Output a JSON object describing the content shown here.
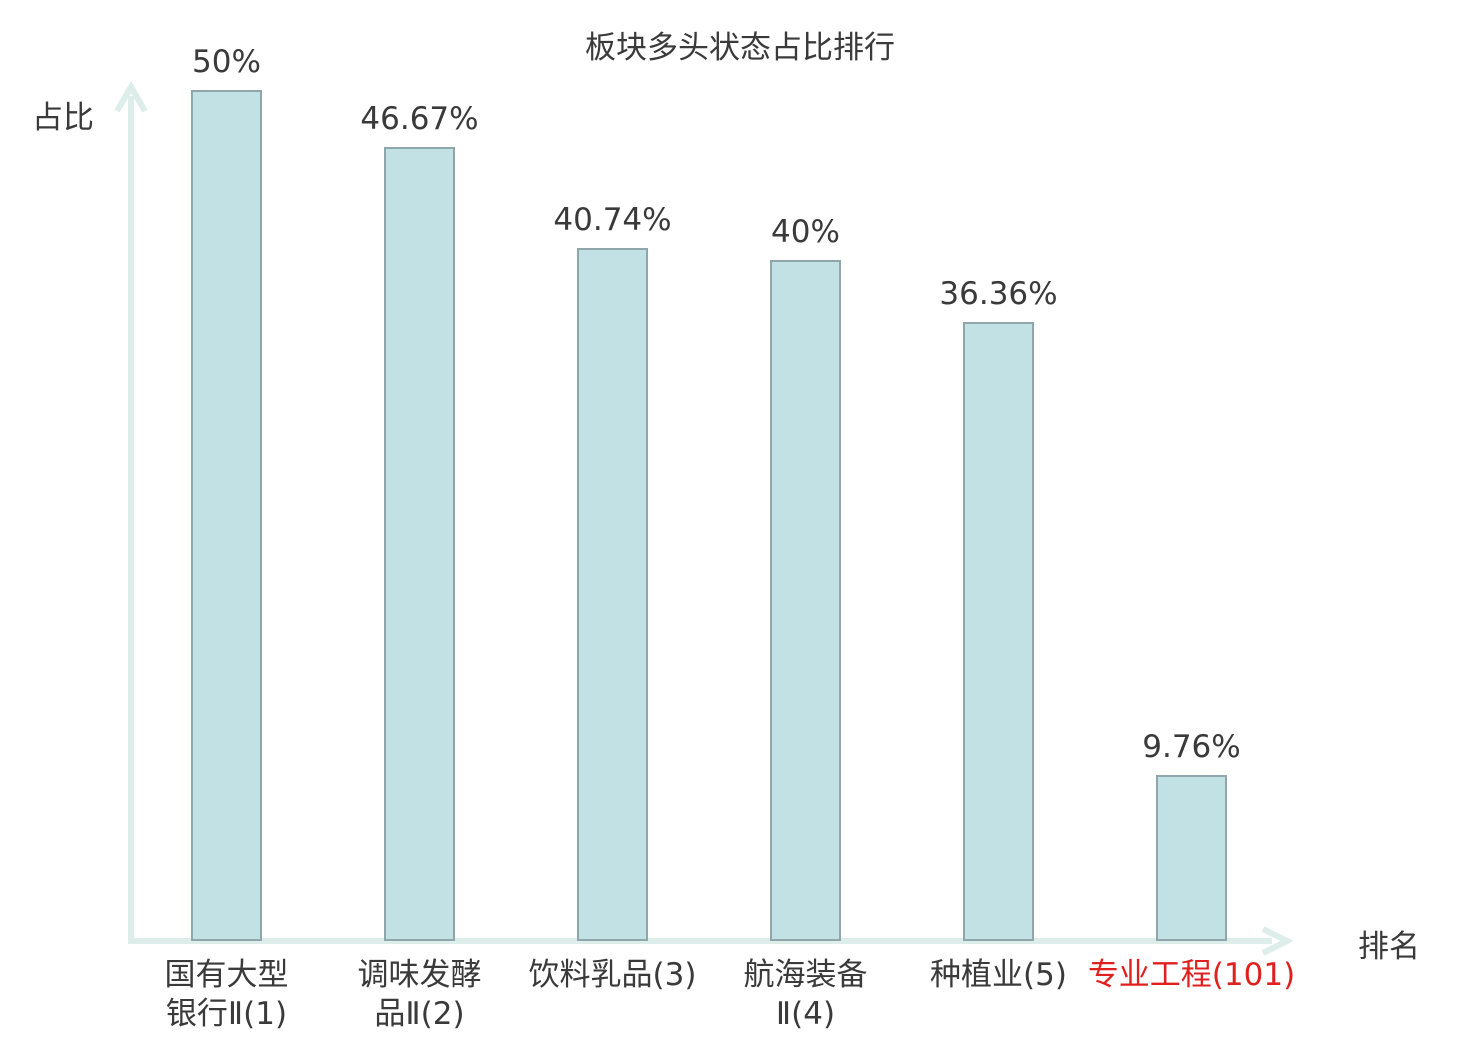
{
  "chart_data": {
    "type": "bar",
    "title": "板块多头状态占比排行",
    "xlabel": "排名",
    "ylabel": "占比",
    "categories": [
      "国有大型\n银行Ⅱ(1)",
      "调味发酵\n品Ⅱ(2)",
      "饮料乳品(3)",
      "航海装备\nⅡ(4)",
      "种植业(5)",
      "专业工程(101)"
    ],
    "values": [
      50,
      46.67,
      40.74,
      40,
      36.36,
      9.76
    ],
    "value_labels": [
      "50%",
      "46.67%",
      "40.74%",
      "40%",
      "36.36%",
      "9.76%"
    ],
    "highlight_index": 5,
    "ylim": [
      0,
      50
    ],
    "grid": false,
    "legend": "none",
    "colors": {
      "bar_fill": "#c2e1e5",
      "bar_border": "#8fa6ab",
      "axis": "#dcedea",
      "text": "#3a3a3a",
      "highlight_text": "#e01f1f"
    }
  }
}
